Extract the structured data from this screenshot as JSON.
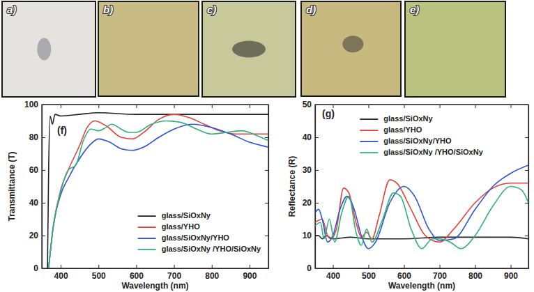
{
  "photos": {
    "labels": [
      "a)",
      "b)",
      "c)",
      "d)",
      "e)"
    ]
  },
  "chart_data": [
    {
      "type": "line",
      "label": "(f)",
      "xlabel": "Wavelength (nm)",
      "ylabel": "Transmittance (T)",
      "xlim": [
        350,
        950
      ],
      "ylim": [
        0,
        100
      ],
      "xticks": [
        400,
        500,
        600,
        700,
        800,
        900
      ],
      "yticks": [
        0,
        20,
        40,
        60,
        80,
        100
      ],
      "grid": false,
      "legend": "lower right",
      "series": [
        {
          "name": "glass/SiOxNy",
          "color": "#222222",
          "x": [
            365,
            368,
            372,
            378,
            385,
            400,
            450,
            500,
            600,
            700,
            800,
            900,
            950
          ],
          "values": [
            0,
            60,
            93,
            88,
            94,
            93,
            94,
            95,
            94,
            94,
            94,
            94,
            94
          ]
        },
        {
          "name": "glass/YHO",
          "color": "#e8413c",
          "x": [
            368,
            380,
            400,
            420,
            450,
            470,
            490,
            520,
            560,
            590,
            620,
            660,
            700,
            740,
            780,
            820,
            860,
            900,
            950
          ],
          "values": [
            0,
            25,
            48,
            60,
            75,
            86,
            90,
            87,
            80,
            79,
            83,
            91,
            94,
            92,
            88,
            84,
            82,
            82,
            82
          ]
        },
        {
          "name": "glass/SiOxNy/YHO",
          "color": "#2a52d8",
          "x": [
            368,
            380,
            400,
            420,
            450,
            480,
            500,
            530,
            560,
            590,
            620,
            660,
            700,
            750,
            800,
            850,
            900,
            950
          ],
          "values": [
            0,
            25,
            45,
            55,
            67,
            76,
            79,
            77,
            73,
            72,
            74,
            80,
            85,
            88,
            86,
            82,
            77,
            74
          ]
        },
        {
          "name": "glass/SiOxNy /YHO/SiOxNy",
          "color": "#32b07a",
          "x": [
            368,
            380,
            400,
            420,
            440,
            460,
            480,
            500,
            520,
            535,
            560,
            580,
            600,
            640,
            680,
            720,
            760,
            800,
            840,
            880,
            920,
            950
          ],
          "values": [
            0,
            25,
            47,
            60,
            63,
            78,
            85,
            84,
            86,
            88,
            85,
            83,
            83,
            88,
            90,
            89,
            85,
            82,
            83,
            84,
            81,
            78
          ]
        }
      ]
    },
    {
      "type": "line",
      "label": "(g)",
      "xlabel": "Wavelength (nm)",
      "ylabel": "Reflectance (R)",
      "xlim": [
        350,
        950
      ],
      "ylim": [
        0,
        50
      ],
      "xticks": [
        400,
        500,
        600,
        700,
        800,
        900
      ],
      "yticks": [
        0,
        10,
        20,
        30,
        40,
        50
      ],
      "grid": false,
      "legend": "upper center",
      "series": [
        {
          "name": "glass/SiOxNy",
          "color": "#222222",
          "x": [
            350,
            360,
            370,
            380,
            400,
            450,
            500,
            600,
            700,
            800,
            900,
            950
          ],
          "values": [
            10,
            10,
            9,
            10,
            9,
            9.5,
            9,
            9,
            9.5,
            9.5,
            9.5,
            9
          ]
        },
        {
          "name": "glass/YHO",
          "color": "#e8413c",
          "x": [
            350,
            370,
            385,
            395,
            410,
            430,
            445,
            465,
            480,
            495,
            510,
            530,
            560,
            580,
            620,
            660,
            700,
            740,
            800,
            850,
            900,
            950
          ],
          "values": [
            14,
            15,
            10,
            9,
            12,
            24.5,
            23,
            14,
            9.5,
            11,
            9,
            16,
            27,
            26,
            18,
            10,
            8,
            12,
            20,
            24.5,
            26,
            26
          ]
        },
        {
          "name": "glass/SiOxNy/YHO",
          "color": "#2a52d8",
          "x": [
            350,
            360,
            370,
            385,
            400,
            420,
            440,
            460,
            480,
            500,
            520,
            560,
            600,
            630,
            670,
            700,
            740,
            800,
            850,
            900,
            950
          ],
          "values": [
            17,
            18,
            15,
            8,
            10,
            18,
            22,
            18,
            10,
            6,
            8,
            20,
            25,
            22,
            12,
            8.5,
            9,
            18,
            25,
            29,
            31.5
          ]
        },
        {
          "name": "glass/SiOxNy /YHO/SiOxNy",
          "color": "#32b07a",
          "x": [
            350,
            365,
            375,
            390,
            405,
            425,
            445,
            465,
            480,
            495,
            510,
            540,
            570,
            590,
            620,
            650,
            680,
            700,
            730,
            760,
            800,
            850,
            900,
            930,
            950
          ],
          "values": [
            13,
            14,
            9,
            15,
            8,
            17,
            22,
            11,
            7,
            12,
            8,
            15,
            23,
            22,
            12,
            6,
            9,
            9,
            8,
            6,
            10,
            19,
            25,
            24,
            20
          ]
        }
      ]
    }
  ]
}
